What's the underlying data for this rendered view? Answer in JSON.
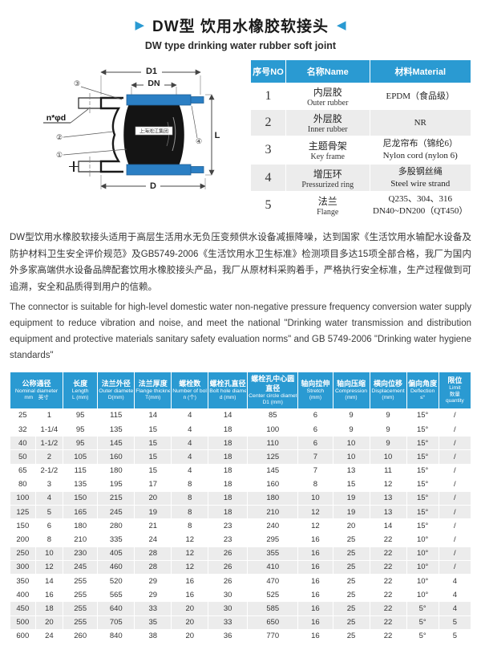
{
  "header": {
    "left_arrow": "▶",
    "right_arrow": "◀",
    "title": "DW型 饮用水橡胶软接头",
    "subtitle": "DW type drinking water rubber soft joint",
    "accent_color": "#2a9ad2"
  },
  "diagram": {
    "labels": {
      "d1": "D1",
      "dn": "DN",
      "d": "D",
      "l": "L",
      "bolt": "n*φd"
    },
    "callout_3": "③",
    "callout_2": "②",
    "callout_1": "①",
    "callout_4": "④",
    "brand_label": "上海淞江集团"
  },
  "materials_table": {
    "headers": [
      "序号NO",
      "名称Name",
      "材料Material"
    ],
    "rows": [
      {
        "no": "1",
        "name_zh": "内层胶",
        "name_en": "Outer rubber",
        "material": [
          "EPDM（食品级）"
        ]
      },
      {
        "no": "2",
        "name_zh": "外层胶",
        "name_en": "Inner rubber",
        "material": [
          "NR"
        ]
      },
      {
        "no": "3",
        "name_zh": "主题骨架",
        "name_en": "Key frame",
        "material": [
          "尼龙帘布（锦纶6）",
          "Nylon cord (nylon 6)"
        ]
      },
      {
        "no": "4",
        "name_zh": "增压环",
        "name_en": "Pressurized ring",
        "material": [
          "多股钢丝绳",
          "Steel wire strand"
        ]
      },
      {
        "no": "5",
        "name_zh": "法兰",
        "name_en": "Flange",
        "material": [
          "Q235、304、316",
          "DN40~DN200（QT450）"
        ]
      }
    ]
  },
  "description": {
    "zh": "DW型饮用水橡胶软接头适用于高层生活用水无负压变频供水设备减振降噪，达到国家《生活饮用水输配水设备及防护材料卫生安全评价规范》及GB5749-2006《生活饮用水卫生标准》检测项目多达15项全部合格，我厂为国内外多家高端供水设备品牌配套饮用水橡胶接头产品，我厂从原材料采购着手，严格执行安全标准，生产过程做到可追溯，安全和品质得到用户的信赖。",
    "en": "The connector is suitable for high-level domestic water non-negative pressure frequency conversion water supply equipment to reduce vibration and noise, and meet the national \"Drinking water transmission and distribution equipment and protective materials sanitary safety evaluation norms\" and GB 5749-2006 \"Drinking water hygiene standards\""
  },
  "spec_table": {
    "columns": [
      {
        "zh": "公称通径",
        "en": "Nominal diameter",
        "sub": "mm　英寸",
        "span": 2
      },
      {
        "zh": "长度",
        "en": "Length",
        "sub": "L (mm)"
      },
      {
        "zh": "法兰外径",
        "en": "Outer diameter",
        "sub": "D(mm)"
      },
      {
        "zh": "法兰厚度",
        "en": "Flange thickness",
        "sub": "T(mm)"
      },
      {
        "zh": "螺栓数",
        "en": "Number of bolts",
        "sub": "n (个)"
      },
      {
        "zh": "螺栓孔直径",
        "en": "Bolt hole diameter",
        "sub": "d (mm)"
      },
      {
        "zh": "螺栓孔中心圆直径",
        "en": "Center circle diameter",
        "sub": "D1 (mm)"
      },
      {
        "zh": "轴向拉伸",
        "en": "Stretch",
        "sub": "(mm)"
      },
      {
        "zh": "轴向压缩",
        "en": "Compression",
        "sub": "(mm)"
      },
      {
        "zh": "横向位移",
        "en": "Displacement",
        "sub": "(mm)"
      },
      {
        "zh": "偏向角度",
        "en": "Deflection",
        "sub": "≤°"
      },
      {
        "zh": "限位",
        "en": "Limit",
        "sub": "数量 quantity"
      }
    ],
    "rows": [
      [
        "25",
        "1",
        "95",
        "115",
        "14",
        "4",
        "14",
        "85",
        "6",
        "9",
        "9",
        "15°",
        "/"
      ],
      [
        "32",
        "1-1/4",
        "95",
        "135",
        "15",
        "4",
        "18",
        "100",
        "6",
        "9",
        "9",
        "15°",
        "/"
      ],
      [
        "40",
        "1-1/2",
        "95",
        "145",
        "15",
        "4",
        "18",
        "110",
        "6",
        "10",
        "9",
        "15°",
        "/"
      ],
      [
        "50",
        "2",
        "105",
        "160",
        "15",
        "4",
        "18",
        "125",
        "7",
        "10",
        "10",
        "15°",
        "/"
      ],
      [
        "65",
        "2-1/2",
        "115",
        "180",
        "15",
        "4",
        "18",
        "145",
        "7",
        "13",
        "11",
        "15°",
        "/"
      ],
      [
        "80",
        "3",
        "135",
        "195",
        "17",
        "8",
        "18",
        "160",
        "8",
        "15",
        "12",
        "15°",
        "/"
      ],
      [
        "100",
        "4",
        "150",
        "215",
        "20",
        "8",
        "18",
        "180",
        "10",
        "19",
        "13",
        "15°",
        "/"
      ],
      [
        "125",
        "5",
        "165",
        "245",
        "19",
        "8",
        "18",
        "210",
        "12",
        "19",
        "13",
        "15°",
        "/"
      ],
      [
        "150",
        "6",
        "180",
        "280",
        "21",
        "8",
        "23",
        "240",
        "12",
        "20",
        "14",
        "15°",
        "/"
      ],
      [
        "200",
        "8",
        "210",
        "335",
        "24",
        "12",
        "23",
        "295",
        "16",
        "25",
        "22",
        "10°",
        "/"
      ],
      [
        "250",
        "10",
        "230",
        "405",
        "28",
        "12",
        "26",
        "355",
        "16",
        "25",
        "22",
        "10°",
        "/"
      ],
      [
        "300",
        "12",
        "245",
        "460",
        "28",
        "12",
        "26",
        "410",
        "16",
        "25",
        "22",
        "10°",
        "/"
      ],
      [
        "350",
        "14",
        "255",
        "520",
        "29",
        "16",
        "26",
        "470",
        "16",
        "25",
        "22",
        "10°",
        "4"
      ],
      [
        "400",
        "16",
        "255",
        "565",
        "29",
        "16",
        "30",
        "525",
        "16",
        "25",
        "22",
        "10°",
        "4"
      ],
      [
        "450",
        "18",
        "255",
        "640",
        "33",
        "20",
        "30",
        "585",
        "16",
        "25",
        "22",
        "5°",
        "4"
      ],
      [
        "500",
        "20",
        "255",
        "705",
        "35",
        "20",
        "33",
        "650",
        "16",
        "25",
        "22",
        "5°",
        "5"
      ],
      [
        "600",
        "24",
        "260",
        "840",
        "38",
        "20",
        "36",
        "770",
        "16",
        "25",
        "22",
        "5°",
        "5"
      ]
    ]
  }
}
